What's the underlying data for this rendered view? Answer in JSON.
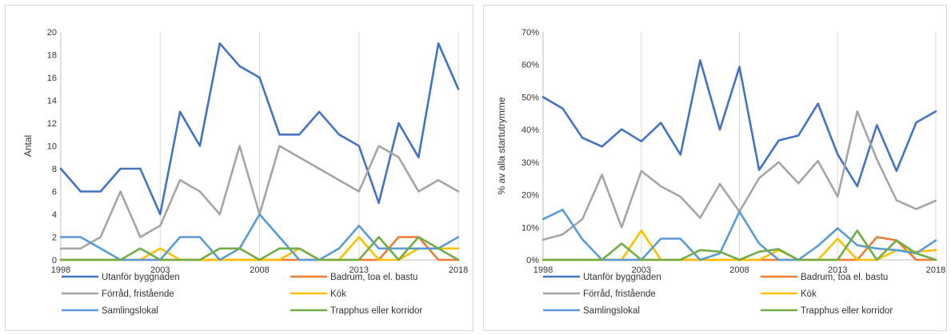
{
  "chart_data": [
    {
      "type": "line",
      "ylabel": "Antal",
      "ylim": [
        0,
        20
      ],
      "yticks": [
        0,
        2,
        4,
        6,
        8,
        10,
        12,
        14,
        16,
        18,
        20
      ],
      "ytick_labels": [
        "0",
        "2",
        "4",
        "6",
        "8",
        "10",
        "12",
        "14",
        "16",
        "18",
        "20"
      ],
      "xlim": [
        1998,
        2018
      ],
      "xticks": [
        "1998",
        "2003",
        "2008",
        "2013",
        "2018"
      ],
      "grid": "vertical",
      "legend_position": "bottom",
      "x": [
        1998,
        1999,
        2000,
        2001,
        2002,
        2003,
        2004,
        2005,
        2006,
        2007,
        2008,
        2009,
        2010,
        2011,
        2012,
        2013,
        2014,
        2015,
        2016,
        2017,
        2018
      ],
      "series": [
        {
          "name": "Utanför byggnaden",
          "color": "#4472c4",
          "values": [
            8,
            6,
            6,
            8,
            8,
            4,
            13,
            10,
            19,
            17,
            16,
            11,
            11,
            13,
            11,
            10,
            5,
            12,
            9,
            19,
            15
          ]
        },
        {
          "name": "Badrum, toa el. bastu",
          "color": "#ed7d31",
          "values": [
            0,
            0,
            0,
            0,
            0,
            0,
            0,
            0,
            0,
            0,
            0,
            0,
            0,
            0,
            0,
            0,
            0,
            2,
            2,
            0,
            0
          ]
        },
        {
          "name": "Förråd, fristående",
          "color": "#a5a5a5",
          "values": [
            1,
            1,
            2,
            6,
            2,
            3,
            7,
            6,
            4,
            10,
            4,
            10,
            9,
            8,
            7,
            6,
            10,
            9,
            6,
            7,
            6
          ]
        },
        {
          "name": "Kök",
          "color": "#ffc000",
          "values": [
            0,
            0,
            0,
            0,
            0,
            1,
            0,
            0,
            0,
            0,
            0,
            0,
            1,
            0,
            0,
            2,
            0,
            0,
            1,
            1,
            1
          ]
        },
        {
          "name": "Samlingslokal",
          "color": "#5b9bd5",
          "values": [
            2,
            2,
            1,
            0,
            0,
            0,
            2,
            2,
            0,
            1,
            4,
            2,
            0,
            0,
            1,
            3,
            1,
            1,
            1,
            1,
            2
          ]
        },
        {
          "name": "Trapphus eller korridor",
          "color": "#70ad47",
          "values": [
            0,
            0,
            0,
            0,
            1,
            0,
            0,
            0,
            1,
            1,
            0,
            1,
            1,
            0,
            0,
            0,
            2,
            0,
            2,
            1,
            0
          ]
        }
      ]
    },
    {
      "type": "line",
      "ylabel": "% av alla startutrymme",
      "ylim": [
        0,
        70
      ],
      "yticks": [
        0,
        10,
        20,
        30,
        40,
        50,
        60,
        70
      ],
      "ytick_labels": [
        "0%",
        "10%",
        "20%",
        "30%",
        "40%",
        "50%",
        "60%",
        "70%"
      ],
      "xlim": [
        1998,
        2018
      ],
      "xticks": [
        "1998",
        "2003",
        "2008",
        "2013",
        "2018"
      ],
      "grid": "vertical",
      "legend_position": "bottom",
      "x": [
        1998,
        1999,
        2000,
        2001,
        2002,
        2003,
        2004,
        2005,
        2006,
        2007,
        2008,
        2009,
        2010,
        2011,
        2012,
        2013,
        2014,
        2015,
        2016,
        2017,
        2018
      ],
      "series": [
        {
          "name": "Utanför byggnaden",
          "color": "#4472c4",
          "values": [
            50,
            46.5,
            37.5,
            34.8,
            40.1,
            36.4,
            42.1,
            32.3,
            61.3,
            40,
            59.3,
            27.6,
            36.7,
            38.2,
            48,
            32.4,
            22.6,
            41.4,
            27.3,
            42.2,
            45.6
          ]
        },
        {
          "name": "Badrum, toa el. bastu",
          "color": "#ed7d31",
          "values": [
            0,
            0,
            0,
            0,
            0,
            0,
            0,
            0,
            0,
            0,
            0,
            0,
            0,
            0,
            0,
            0,
            0,
            7,
            6,
            0,
            0
          ]
        },
        {
          "name": "Förråd, fristående",
          "color": "#a5a5a5",
          "values": [
            6.2,
            7.8,
            12.5,
            26.1,
            10,
            27.3,
            22.6,
            19.4,
            12.9,
            23.3,
            14.8,
            25.1,
            30,
            23.5,
            30.4,
            19.4,
            45.6,
            30.9,
            18.3,
            15.6,
            18.2
          ]
        },
        {
          "name": "Kök",
          "color": "#ffc000",
          "values": [
            0,
            0,
            0,
            0,
            0,
            9,
            0,
            0,
            0,
            0,
            0,
            0,
            3,
            0,
            0,
            6.5,
            0,
            0,
            3,
            2.5,
            3
          ]
        },
        {
          "name": "Samlingslokal",
          "color": "#5b9bd5",
          "values": [
            12.5,
            15.4,
            6.3,
            0,
            0,
            0,
            6.5,
            6.5,
            0,
            2,
            14.8,
            5,
            0,
            0,
            4.3,
            9.7,
            4.5,
            3.5,
            3,
            2,
            6
          ]
        },
        {
          "name": "Trapphus eller korridor",
          "color": "#70ad47",
          "values": [
            0,
            0,
            0,
            0,
            5,
            0,
            0,
            0,
            3,
            2.5,
            0,
            2.5,
            3.3,
            0,
            0,
            0,
            9,
            0,
            6,
            2,
            0
          ]
        }
      ]
    }
  ]
}
